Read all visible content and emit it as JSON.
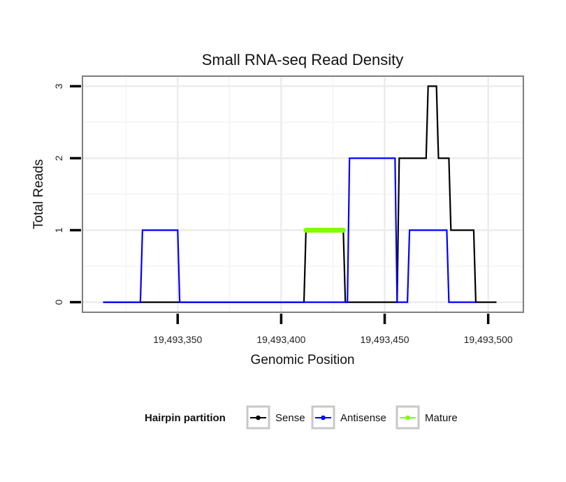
{
  "chart_data": {
    "type": "line",
    "title": "Small RNA-seq Read Density",
    "xlabel": "Genomic Position",
    "ylabel": "Total Reads",
    "xlim": [
      19493304,
      19493517
    ],
    "ylim": [
      -0.14,
      3.14
    ],
    "x_ticks": [
      19493350,
      19493400,
      19493450,
      19493500
    ],
    "x_tick_labels": [
      "19,493,350",
      "19,493,400",
      "19,493,450",
      "19,493,500"
    ],
    "y_ticks": [
      0,
      1,
      2,
      3
    ],
    "y_tick_labels": [
      "0",
      "1",
      "2",
      "3"
    ],
    "grid": true,
    "legend": {
      "title": "Hairpin partition",
      "position": "bottom",
      "entries": [
        {
          "name": "Sense",
          "color": "#000000"
        },
        {
          "name": "Antisense",
          "color": "#0000ff"
        },
        {
          "name": "Mature",
          "color": "#7fff00"
        }
      ]
    },
    "series": [
      {
        "name": "Sense",
        "color": "#000000",
        "x": [
          19493314,
          19493411,
          19493412,
          19493430,
          19493431,
          19493456,
          19493457,
          19493470,
          19493471,
          19493475,
          19493476,
          19493481,
          19493482,
          19493493,
          19493494,
          19493504
        ],
        "y": [
          0,
          0,
          1,
          1,
          0,
          0,
          2,
          2,
          3,
          3,
          2,
          2,
          1,
          1,
          0,
          0
        ]
      },
      {
        "name": "Antisense",
        "color": "#0000ff",
        "x": [
          19493314,
          19493332,
          19493333,
          19493350,
          19493351,
          19493432,
          19493433,
          19493455,
          19493456,
          19493461,
          19493462,
          19493480,
          19493481,
          19493494
        ],
        "y": [
          0,
          0,
          1,
          1,
          0,
          0,
          2,
          2,
          0,
          0,
          1,
          1,
          0,
          0
        ]
      },
      {
        "name": "Mature",
        "color": "#7fff00",
        "x": [
          19493412,
          19493430
        ],
        "y": [
          1,
          1
        ]
      }
    ]
  }
}
